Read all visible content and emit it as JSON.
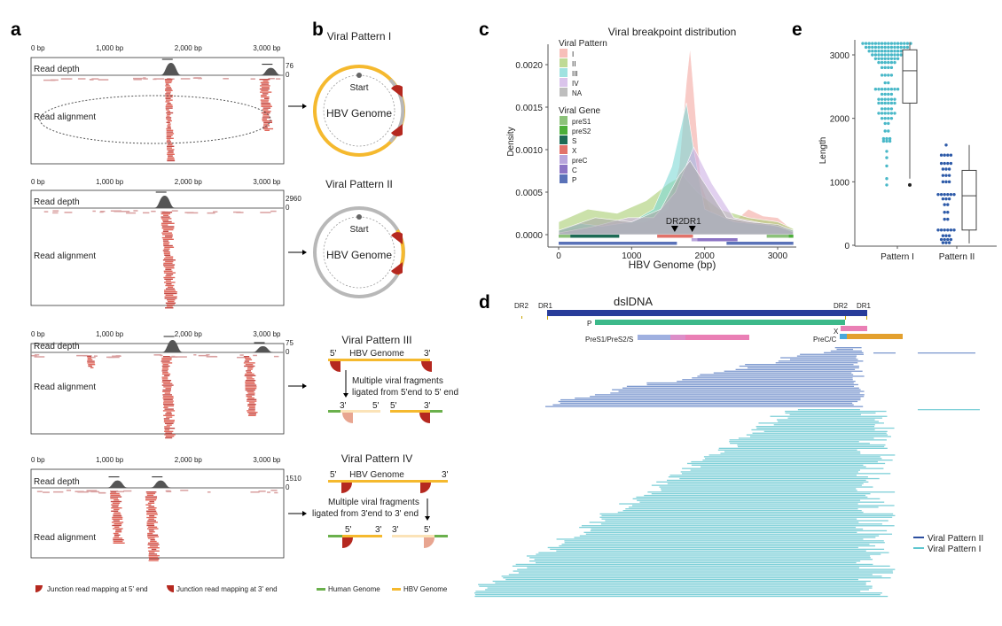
{
  "panel_labels": {
    "a": "a",
    "b": "b",
    "c": "c",
    "d": "d",
    "e": "e"
  },
  "panel_a": {
    "axis_ticks": [
      "0 bp",
      "1,000 bp",
      "2,000 bp",
      "3,000 bp"
    ],
    "read_depth_label": "Read depth",
    "read_alignment_label": "Read alignment",
    "tracks": [
      {
        "depth_max": "76",
        "depth_min": "0"
      },
      {
        "depth_max": "2960",
        "depth_min": "0"
      },
      {
        "depth_max": "75",
        "depth_min": "0"
      },
      {
        "depth_max": "1510",
        "depth_min": "0"
      }
    ],
    "legend": {
      "junction_5": "Junction read mapping at 5' end",
      "junction_3": "Junction read mapping at 3' end"
    }
  },
  "panel_b": {
    "pattern1_title": "Viral Pattern I",
    "pattern2_title": "Viral Pattern II",
    "pattern3_title": "Viral Pattern III",
    "pattern4_title": "Viral Pattern IV",
    "start_label": "Start",
    "genome_label": "HBV Genome",
    "five_prime": "5'",
    "three_prime": "3'",
    "pattern3_text_1": "Multiple viral fragments",
    "pattern3_text_2": "ligated from 5'end to 5' end",
    "pattern4_text_1": "Multiple viral fragments",
    "pattern4_text_2": "ligated from 3'end to 3' end",
    "legend": {
      "human": "Human Genome",
      "hbv": "HBV Genome"
    },
    "colors": {
      "human": "#6ab04c",
      "hbv": "#f5b92e",
      "junction": "#b5281f",
      "circle_gray": "#b8b8b8"
    }
  },
  "panel_d": {
    "dsldna_label": "dslDNA",
    "dr2_left": "DR2",
    "dr1_left": "DR1",
    "dr2_right": "DR2",
    "dr1_right": "DR1",
    "p_label": "P",
    "x_label": "X",
    "pres_label": "PreS1/PreS2/S",
    "prec_label": "PreC/C",
    "legend": {
      "pattern2": "Viral Pattern II",
      "pattern1": "Viral Pattern I"
    },
    "colors": {
      "pattern2": "#7f9bd0",
      "pattern1": "#7fd0d8",
      "dsldna": "#283c9a",
      "p": "#3cb98a",
      "pink": "#ea7fb5",
      "pres1": "#9fb0e0",
      "prec": "#4aa8dc",
      "core": "#e3a02e"
    }
  },
  "chart_data": [
    {
      "type": "area",
      "title": "Viral breakpoint distribution",
      "xlabel": "HBV  Genome (bp)",
      "ylabel": "Density",
      "xlim": [
        0,
        3215
      ],
      "ylim": [
        0,
        0.0022
      ],
      "x_ticks": [
        "0",
        "1000",
        "2000",
        "3000"
      ],
      "y_ticks": [
        "0.0000",
        "0.0005",
        "0.0010",
        "0.0015",
        "0.0020"
      ],
      "grid": false,
      "legend_position": "top-left",
      "legend_title_pattern": "Viral Pattern",
      "legend_title_gene": "Viral Gene",
      "series": [
        {
          "name": "I",
          "color": "#f4a9a1",
          "points": [
            [
              0,
              5e-05
            ],
            [
              400,
              0.0001
            ],
            [
              800,
              0.00012
            ],
            [
              1200,
              0.00015
            ],
            [
              1500,
              0.0003
            ],
            [
              1650,
              0.0008
            ],
            [
              1750,
              0.0018
            ],
            [
              1800,
              0.0022
            ],
            [
              1850,
              0.0017
            ],
            [
              1950,
              0.0006
            ],
            [
              2100,
              0.00025
            ],
            [
              2400,
              0.00015
            ],
            [
              2600,
              0.0003
            ],
            [
              2800,
              0.00022
            ],
            [
              3000,
              0.0002
            ],
            [
              3215,
              5e-05
            ]
          ]
        },
        {
          "name": "II",
          "color": "#a9cd72",
          "points": [
            [
              0,
              0.00015
            ],
            [
              400,
              0.0003
            ],
            [
              800,
              0.00025
            ],
            [
              1200,
              0.0004
            ],
            [
              1500,
              0.0006
            ],
            [
              1700,
              0.0007
            ],
            [
              1900,
              0.0005
            ],
            [
              2200,
              0.0003
            ],
            [
              2600,
              0.0002
            ],
            [
              3000,
              0.00015
            ],
            [
              3215,
              7e-05
            ]
          ]
        },
        {
          "name": "III",
          "color": "#7fd8d6",
          "points": [
            [
              0,
              5e-05
            ],
            [
              300,
              0.00013
            ],
            [
              600,
              0.0001
            ],
            [
              1000,
              0.00015
            ],
            [
              1300,
              0.0003
            ],
            [
              1550,
              0.0008
            ],
            [
              1750,
              0.00155
            ],
            [
              1850,
              0.001
            ],
            [
              2000,
              0.0003
            ],
            [
              2400,
              0.00015
            ],
            [
              3000,
              0.0001
            ],
            [
              3215,
              5e-05
            ]
          ]
        },
        {
          "name": "IV",
          "color": "#cdb0e4",
          "points": [
            [
              0,
              2e-05
            ],
            [
              500,
              0.0001
            ],
            [
              950,
              0.0002
            ],
            [
              1300,
              0.0002
            ],
            [
              1600,
              0.0005
            ],
            [
              1850,
              0.00103
            ],
            [
              2100,
              0.0006
            ],
            [
              2400,
              0.0002
            ],
            [
              3000,
              0.0001
            ],
            [
              3215,
              3e-05
            ]
          ]
        },
        {
          "name": "NA",
          "color": "#a8a8a8",
          "points": [
            [
              0,
              5e-05
            ],
            [
              500,
              0.0002
            ],
            [
              1000,
              0.00015
            ],
            [
              1400,
              0.0003
            ],
            [
              1650,
              0.0007
            ],
            [
              1800,
              0.00087
            ],
            [
              2000,
              0.0006
            ],
            [
              2300,
              0.0002
            ],
            [
              2600,
              0.00015
            ],
            [
              3000,
              0.00012
            ],
            [
              3215,
              5e-05
            ]
          ]
        }
      ],
      "genes": [
        {
          "name": "preS1",
          "color": "#8cc27a",
          "segments": [
            [
              0,
              160
            ],
            [
              2850,
              3150
            ]
          ],
          "row": 1
        },
        {
          "name": "preS2",
          "color": "#4caf3a",
          "segments": [
            [
              3150,
              3215
            ]
          ],
          "row": 1
        },
        {
          "name": "S",
          "color": "#1d6b55",
          "segments": [
            [
              160,
              830
            ]
          ],
          "row": 1
        },
        {
          "name": "X",
          "color": "#e2726a",
          "segments": [
            [
              1350,
              1840
            ]
          ],
          "row": 1
        },
        {
          "name": "preC",
          "color": "#b9a6dc",
          "segments": [
            [
              1820,
              1900
            ]
          ],
          "row": 2
        },
        {
          "name": "C",
          "color": "#8c74c4",
          "segments": [
            [
              1900,
              2450
            ]
          ],
          "row": 2
        },
        {
          "name": "P",
          "color": "#5a72b8",
          "segments": [
            [
              0,
              1620
            ],
            [
              2300,
              3215
            ]
          ],
          "row": 3
        }
      ],
      "markers": [
        {
          "label": "DR2",
          "x": 1590
        },
        {
          "label": "DR1",
          "x": 1830
        }
      ]
    },
    {
      "type": "scatter",
      "subtype": "dotplot-with-boxplot",
      "ylabel": "Length",
      "ylim": [
        0,
        3250
      ],
      "y_ticks": [
        "0",
        "1000",
        "2000",
        "3000"
      ],
      "categories": [
        "Pattern I",
        "Pattern II"
      ],
      "series": [
        {
          "category": "Pattern I",
          "color": "#49b8c8",
          "binned_points": [
            [
              3180,
              16
            ],
            [
              3120,
              14
            ],
            [
              3060,
              12
            ],
            [
              3000,
              10
            ],
            [
              2940,
              8
            ],
            [
              2880,
              6
            ],
            [
              2800,
              4
            ],
            [
              2680,
              4
            ],
            [
              2560,
              2
            ],
            [
              2460,
              8
            ],
            [
              2380,
              4
            ],
            [
              2300,
              6
            ],
            [
              2240,
              6
            ],
            [
              2150,
              4
            ],
            [
              2080,
              6
            ],
            [
              2000,
              4
            ],
            [
              1920,
              2
            ],
            [
              1800,
              2
            ],
            [
              1680,
              3
            ],
            [
              1640,
              3
            ],
            [
              1480,
              1
            ],
            [
              1380,
              1
            ],
            [
              1250,
              1
            ],
            [
              1050,
              1
            ],
            [
              950,
              1
            ]
          ],
          "box": {
            "min": 1050,
            "q1": 2240,
            "median": 2750,
            "q3": 3080,
            "max": 3200,
            "outliers": [
              950
            ]
          }
        },
        {
          "category": "Pattern II",
          "color": "#2d5aa8",
          "binned_points": [
            [
              1580,
              1
            ],
            [
              1420,
              4
            ],
            [
              1290,
              4
            ],
            [
              1200,
              3
            ],
            [
              1100,
              3
            ],
            [
              1000,
              3
            ],
            [
              800,
              6
            ],
            [
              730,
              3
            ],
            [
              640,
              2
            ],
            [
              520,
              2
            ],
            [
              410,
              2
            ],
            [
              240,
              6
            ],
            [
              150,
              3
            ],
            [
              90,
              4
            ],
            [
              40,
              3
            ]
          ],
          "box": {
            "min": 30,
            "q1": 240,
            "median": 780,
            "q3": 1180,
            "max": 1580,
            "outliers": []
          }
        }
      ]
    }
  ]
}
